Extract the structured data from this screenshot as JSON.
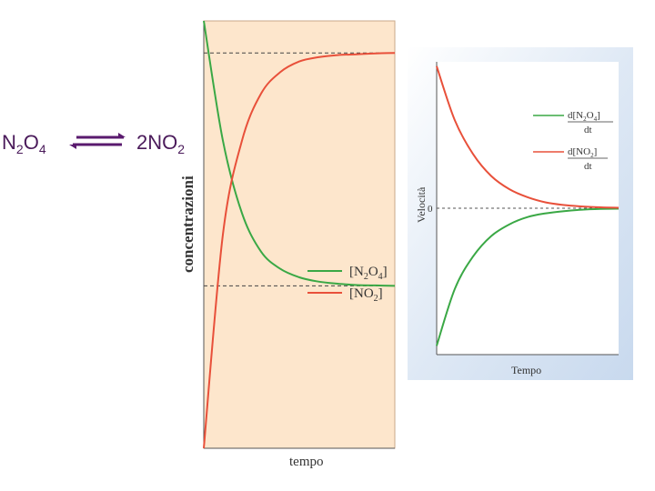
{
  "equation": {
    "left": "N",
    "left_sub1": "2",
    "left_mid": "O",
    "left_sub2": "4",
    "right": "2NO",
    "right_sub": "2",
    "arrow_color": "#5a1a6e"
  },
  "chart_data": [
    {
      "type": "line",
      "xlabel": "tempo",
      "ylabel": "concentrazioni",
      "xlim": [
        0,
        10
      ],
      "ylim": [
        0,
        1
      ],
      "background": "#fde6cc",
      "grid": false,
      "legend_position": "bottom-right",
      "legend": [
        {
          "text": "[N",
          "sub": "2",
          "mid": "O",
          "sub2": "4",
          "end": "]",
          "color": "#3aa845"
        },
        {
          "text": "[NO",
          "sub": "2",
          "mid": "",
          "sub2": "",
          "end": "]",
          "color": "#e8503a"
        }
      ],
      "series": [
        {
          "name": "[N2O4]",
          "color": "#3aa845",
          "x": [
            0,
            1,
            2,
            3,
            4,
            5,
            6,
            7,
            8,
            9,
            10
          ],
          "y": [
            1.0,
            0.72,
            0.55,
            0.46,
            0.42,
            0.4,
            0.39,
            0.385,
            0.382,
            0.381,
            0.38
          ]
        },
        {
          "name": "[NO2]",
          "color": "#e8503a",
          "x": [
            0,
            1,
            2,
            3,
            4,
            5,
            6,
            7,
            8,
            9,
            10
          ],
          "y": [
            0.0,
            0.5,
            0.72,
            0.83,
            0.88,
            0.905,
            0.915,
            0.92,
            0.922,
            0.924,
            0.925
          ]
        }
      ],
      "reference_lines": [
        0.925,
        0.38
      ]
    },
    {
      "type": "line",
      "xlabel": "Tempo",
      "ylabel": "Velocità",
      "zero_label": "0",
      "xlim": [
        0,
        10
      ],
      "ylim": [
        -1,
        1
      ],
      "grid": false,
      "legend_position": "top-right",
      "legend": [
        {
          "num_a": "d[N",
          "num_sub1": "2",
          "num_mid": "O",
          "num_sub2": "4",
          "num_end": "]",
          "den": "dt",
          "color": "#3aa845"
        },
        {
          "num_a": "d[NO",
          "num_sub1": "2",
          "num_mid": "",
          "num_sub2": "",
          "num_end": "]",
          "den": "dt",
          "color": "#e8503a"
        }
      ],
      "series": [
        {
          "name": "d[N2O4]/dt",
          "color": "#3aa845",
          "x": [
            0,
            1,
            2,
            3,
            4,
            5,
            6,
            7,
            8,
            9,
            10
          ],
          "y": [
            -0.94,
            -0.55,
            -0.33,
            -0.19,
            -0.11,
            -0.06,
            -0.035,
            -0.02,
            -0.01,
            -0.005,
            -0.003
          ]
        },
        {
          "name": "d[NO2]/dt",
          "color": "#e8503a",
          "x": [
            0,
            1,
            2,
            3,
            4,
            5,
            6,
            7,
            8,
            9,
            10
          ],
          "y": [
            0.97,
            0.6,
            0.37,
            0.22,
            0.13,
            0.075,
            0.04,
            0.022,
            0.012,
            0.006,
            0.003
          ]
        }
      ]
    }
  ]
}
